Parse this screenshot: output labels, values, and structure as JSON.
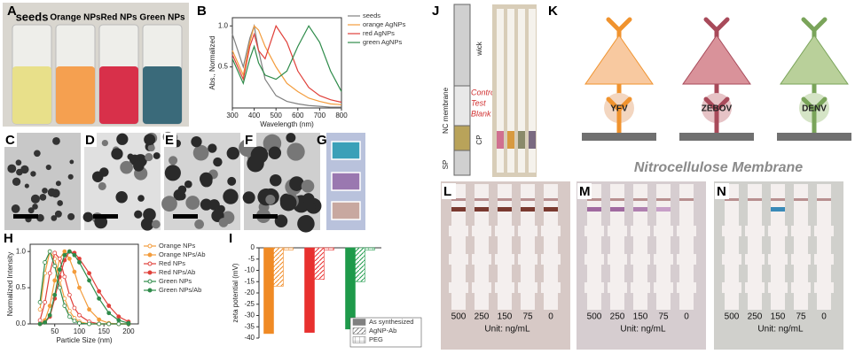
{
  "panel_labels": {
    "A": "A",
    "B": "B",
    "H": "H",
    "I": "I",
    "J": "J",
    "K": "K"
  },
  "vials": [
    "seeds",
    "Orange NPs",
    "Red NPs",
    "Green NPs"
  ],
  "tem_panels": [
    "C",
    "D",
    "E",
    "F",
    "G"
  ],
  "chart_data": [
    {
      "type": "line",
      "x_label": "Wavelength (nm)",
      "y_label": "Abs., Normalized",
      "legend": "right",
      "x": [
        300,
        350,
        380,
        400,
        420,
        450,
        500,
        550,
        600,
        650,
        700,
        750,
        800
      ],
      "xlim": [
        300,
        800
      ],
      "xticks": [
        300,
        400,
        500,
        600,
        700,
        800
      ],
      "ylim": [
        0,
        1.1
      ],
      "yticks": [
        0.5,
        {
          "value": 1,
          "label": "1.0"
        }
      ],
      "series": [
        {
          "name": "seeds",
          "color": "#808080",
          "values": [
            0.9,
            0.5,
            0.85,
            1.0,
            0.7,
            0.35,
            0.15,
            0.08,
            0.05,
            0.03,
            0.02,
            0.01,
            0.01
          ]
        },
        {
          "name": "orange AgNPs",
          "color": "#f39c3c",
          "values": [
            0.7,
            0.4,
            0.8,
            1.0,
            0.95,
            0.75,
            0.5,
            0.3,
            0.2,
            0.12,
            0.08,
            0.05,
            0.04
          ]
        },
        {
          "name": "red AgNPs",
          "color": "#e0403a",
          "values": [
            0.65,
            0.35,
            0.75,
            0.9,
            0.7,
            0.6,
            1.0,
            0.8,
            0.45,
            0.25,
            0.15,
            0.1,
            0.07
          ]
        },
        {
          "name": "green AgNPs",
          "color": "#2e8b4a",
          "values": [
            0.6,
            0.3,
            0.6,
            0.75,
            0.55,
            0.4,
            0.35,
            0.45,
            0.75,
            1.0,
            0.8,
            0.45,
            0.2
          ]
        }
      ]
    },
    {
      "type": "line",
      "x_label": "Particle Size (nm)",
      "y_label": "Normalized Intensity",
      "legend": "right",
      "x": [
        20,
        30,
        40,
        50,
        60,
        70,
        80,
        90,
        100,
        120,
        140,
        160,
        180,
        200
      ],
      "xlim": [
        0,
        220
      ],
      "xticks": [
        50,
        100,
        150,
        200
      ],
      "ylim": [
        0,
        1.1
      ],
      "yticks": [
        {
          "value": 0,
          "label": "0.0"
        },
        0.5,
        {
          "value": 1,
          "label": "1.0"
        }
      ],
      "series": [
        {
          "name": "Orange NPs",
          "color": "#f39c3c",
          "marker": "open",
          "values": [
            0.2,
            0.7,
            1.0,
            0.9,
            0.6,
            0.35,
            0.18,
            0.08,
            0.03,
            0,
            0,
            0,
            0,
            0
          ]
        },
        {
          "name": "Orange NPs/Ab",
          "color": "#f39c3c",
          "marker": "filled",
          "values": [
            0,
            0.05,
            0.25,
            0.6,
            0.9,
            1.0,
            0.9,
            0.72,
            0.5,
            0.2,
            0.06,
            0.01,
            0,
            0
          ]
        },
        {
          "name": "Red NPs",
          "color": "#e0403a",
          "marker": "open",
          "values": [
            0.05,
            0.3,
            0.7,
            0.98,
            0.9,
            0.65,
            0.4,
            0.22,
            0.12,
            0.03,
            0,
            0,
            0,
            0
          ]
        },
        {
          "name": "Red NPs/Ab",
          "color": "#e0403a",
          "marker": "filled",
          "values": [
            0,
            0.02,
            0.1,
            0.35,
            0.65,
            0.88,
            1.0,
            0.98,
            0.9,
            0.7,
            0.45,
            0.25,
            0.1,
            0.03
          ]
        },
        {
          "name": "Green NPs",
          "color": "#2e8b4a",
          "marker": "open",
          "values": [
            0.3,
            0.85,
            1.0,
            0.8,
            0.5,
            0.25,
            0.1,
            0.04,
            0.01,
            0,
            0,
            0,
            0,
            0
          ]
        },
        {
          "name": "Green NPs/Ab",
          "color": "#2e8b4a",
          "marker": "filled",
          "values": [
            0,
            0.02,
            0.12,
            0.4,
            0.75,
            0.95,
            1.0,
            0.95,
            0.85,
            0.6,
            0.35,
            0.15,
            0.05,
            0.01
          ]
        }
      ]
    },
    {
      "type": "bar",
      "y_label": "zeta potential (mV)",
      "legend": "lower right",
      "ylim": [
        -40,
        0
      ],
      "yticks": [
        0,
        -5,
        -10,
        -15,
        -20,
        -25,
        -30,
        -35,
        -40
      ],
      "group_colors": [
        "#f08a24",
        "#e8302e",
        "#1e9a4a"
      ],
      "series": [
        {
          "name": "As synthesized",
          "color": "#808080",
          "pattern": "solid",
          "values": [
            -38,
            -37.5,
            -36
          ]
        },
        {
          "name": "AgNP-Ab",
          "color": "#808080",
          "pattern": "hatch",
          "values": [
            -17,
            -14,
            -15
          ]
        },
        {
          "name": "PEG",
          "color": "#808080",
          "pattern": "grid",
          "values": [
            -1,
            -1,
            -1
          ]
        }
      ]
    }
  ],
  "strip_schematic": {
    "wick": "wick",
    "membrane": "NC membrane",
    "control": "Control",
    "test": "Test",
    "blank": "Blank",
    "cp": "CP",
    "sp": "SP"
  },
  "antigens": [
    "YFV",
    "ZEBOV",
    "DENV"
  ],
  "membrane_title": "Nitrocellulose Membrane",
  "strip_panels": [
    {
      "label": "L",
      "concentrations": [
        500,
        250,
        150,
        75,
        0
      ],
      "unit": "Unit: ng/mL"
    },
    {
      "label": "M",
      "concentrations": [
        500,
        250,
        150,
        75,
        0
      ],
      "unit": "Unit: ng/mL"
    },
    {
      "label": "N",
      "concentrations": [
        500,
        250,
        150,
        75,
        0
      ],
      "unit": "Unit: ng/mL"
    }
  ]
}
